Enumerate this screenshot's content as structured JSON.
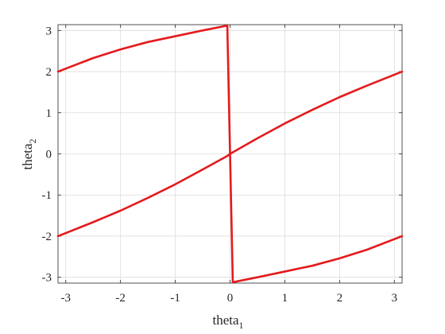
{
  "chart_data": {
    "type": "line",
    "title": "",
    "xlabel": {
      "base": "theta",
      "sub": "1"
    },
    "ylabel": {
      "base": "theta",
      "sub": "2"
    },
    "xlim": [
      -3.1416,
      3.1416
    ],
    "ylim": [
      -3.1416,
      3.1416
    ],
    "xticks": [
      -3,
      -2,
      -1,
      0,
      1,
      2,
      3
    ],
    "yticks": [
      -3,
      -2,
      -1,
      0,
      1,
      2,
      3
    ],
    "xtick_labels": [
      "-3",
      "-2",
      "-1",
      "0",
      "1",
      "2",
      "3"
    ],
    "ytick_labels": [
      "-3",
      "-2",
      "-1",
      "0",
      "1",
      "2",
      "3"
    ],
    "grid": true,
    "line_color": "#e41a1c",
    "series": [
      {
        "x": [
          -3.1416,
          -2.5,
          -2.0,
          -1.5,
          -1.0,
          -0.5,
          -0.05,
          0.0,
          0.5,
          1.0,
          1.5,
          2.0,
          2.5,
          3.1416
        ],
        "y": [
          -2.0,
          -1.66,
          -1.38,
          -1.07,
          -0.74,
          -0.38,
          -0.05,
          0.0,
          0.38,
          0.74,
          1.07,
          1.38,
          1.66,
          2.0
        ]
      },
      {
        "x": [
          -3.1416,
          -2.5,
          -2.0,
          -1.5,
          -1.0,
          -0.5,
          -0.05
        ],
        "y": [
          2.0,
          2.33,
          2.54,
          2.72,
          2.86,
          3.0,
          3.12
        ]
      },
      {
        "x": [
          0.05,
          0.5,
          1.0,
          1.5,
          2.0,
          2.5,
          3.1416
        ],
        "y": [
          -3.12,
          -3.0,
          -2.86,
          -2.72,
          -2.54,
          -2.33,
          -2.0
        ]
      },
      {
        "x": [
          -0.05,
          0.0,
          0.05
        ],
        "y": [
          3.12,
          0.0,
          -3.12
        ]
      }
    ]
  }
}
